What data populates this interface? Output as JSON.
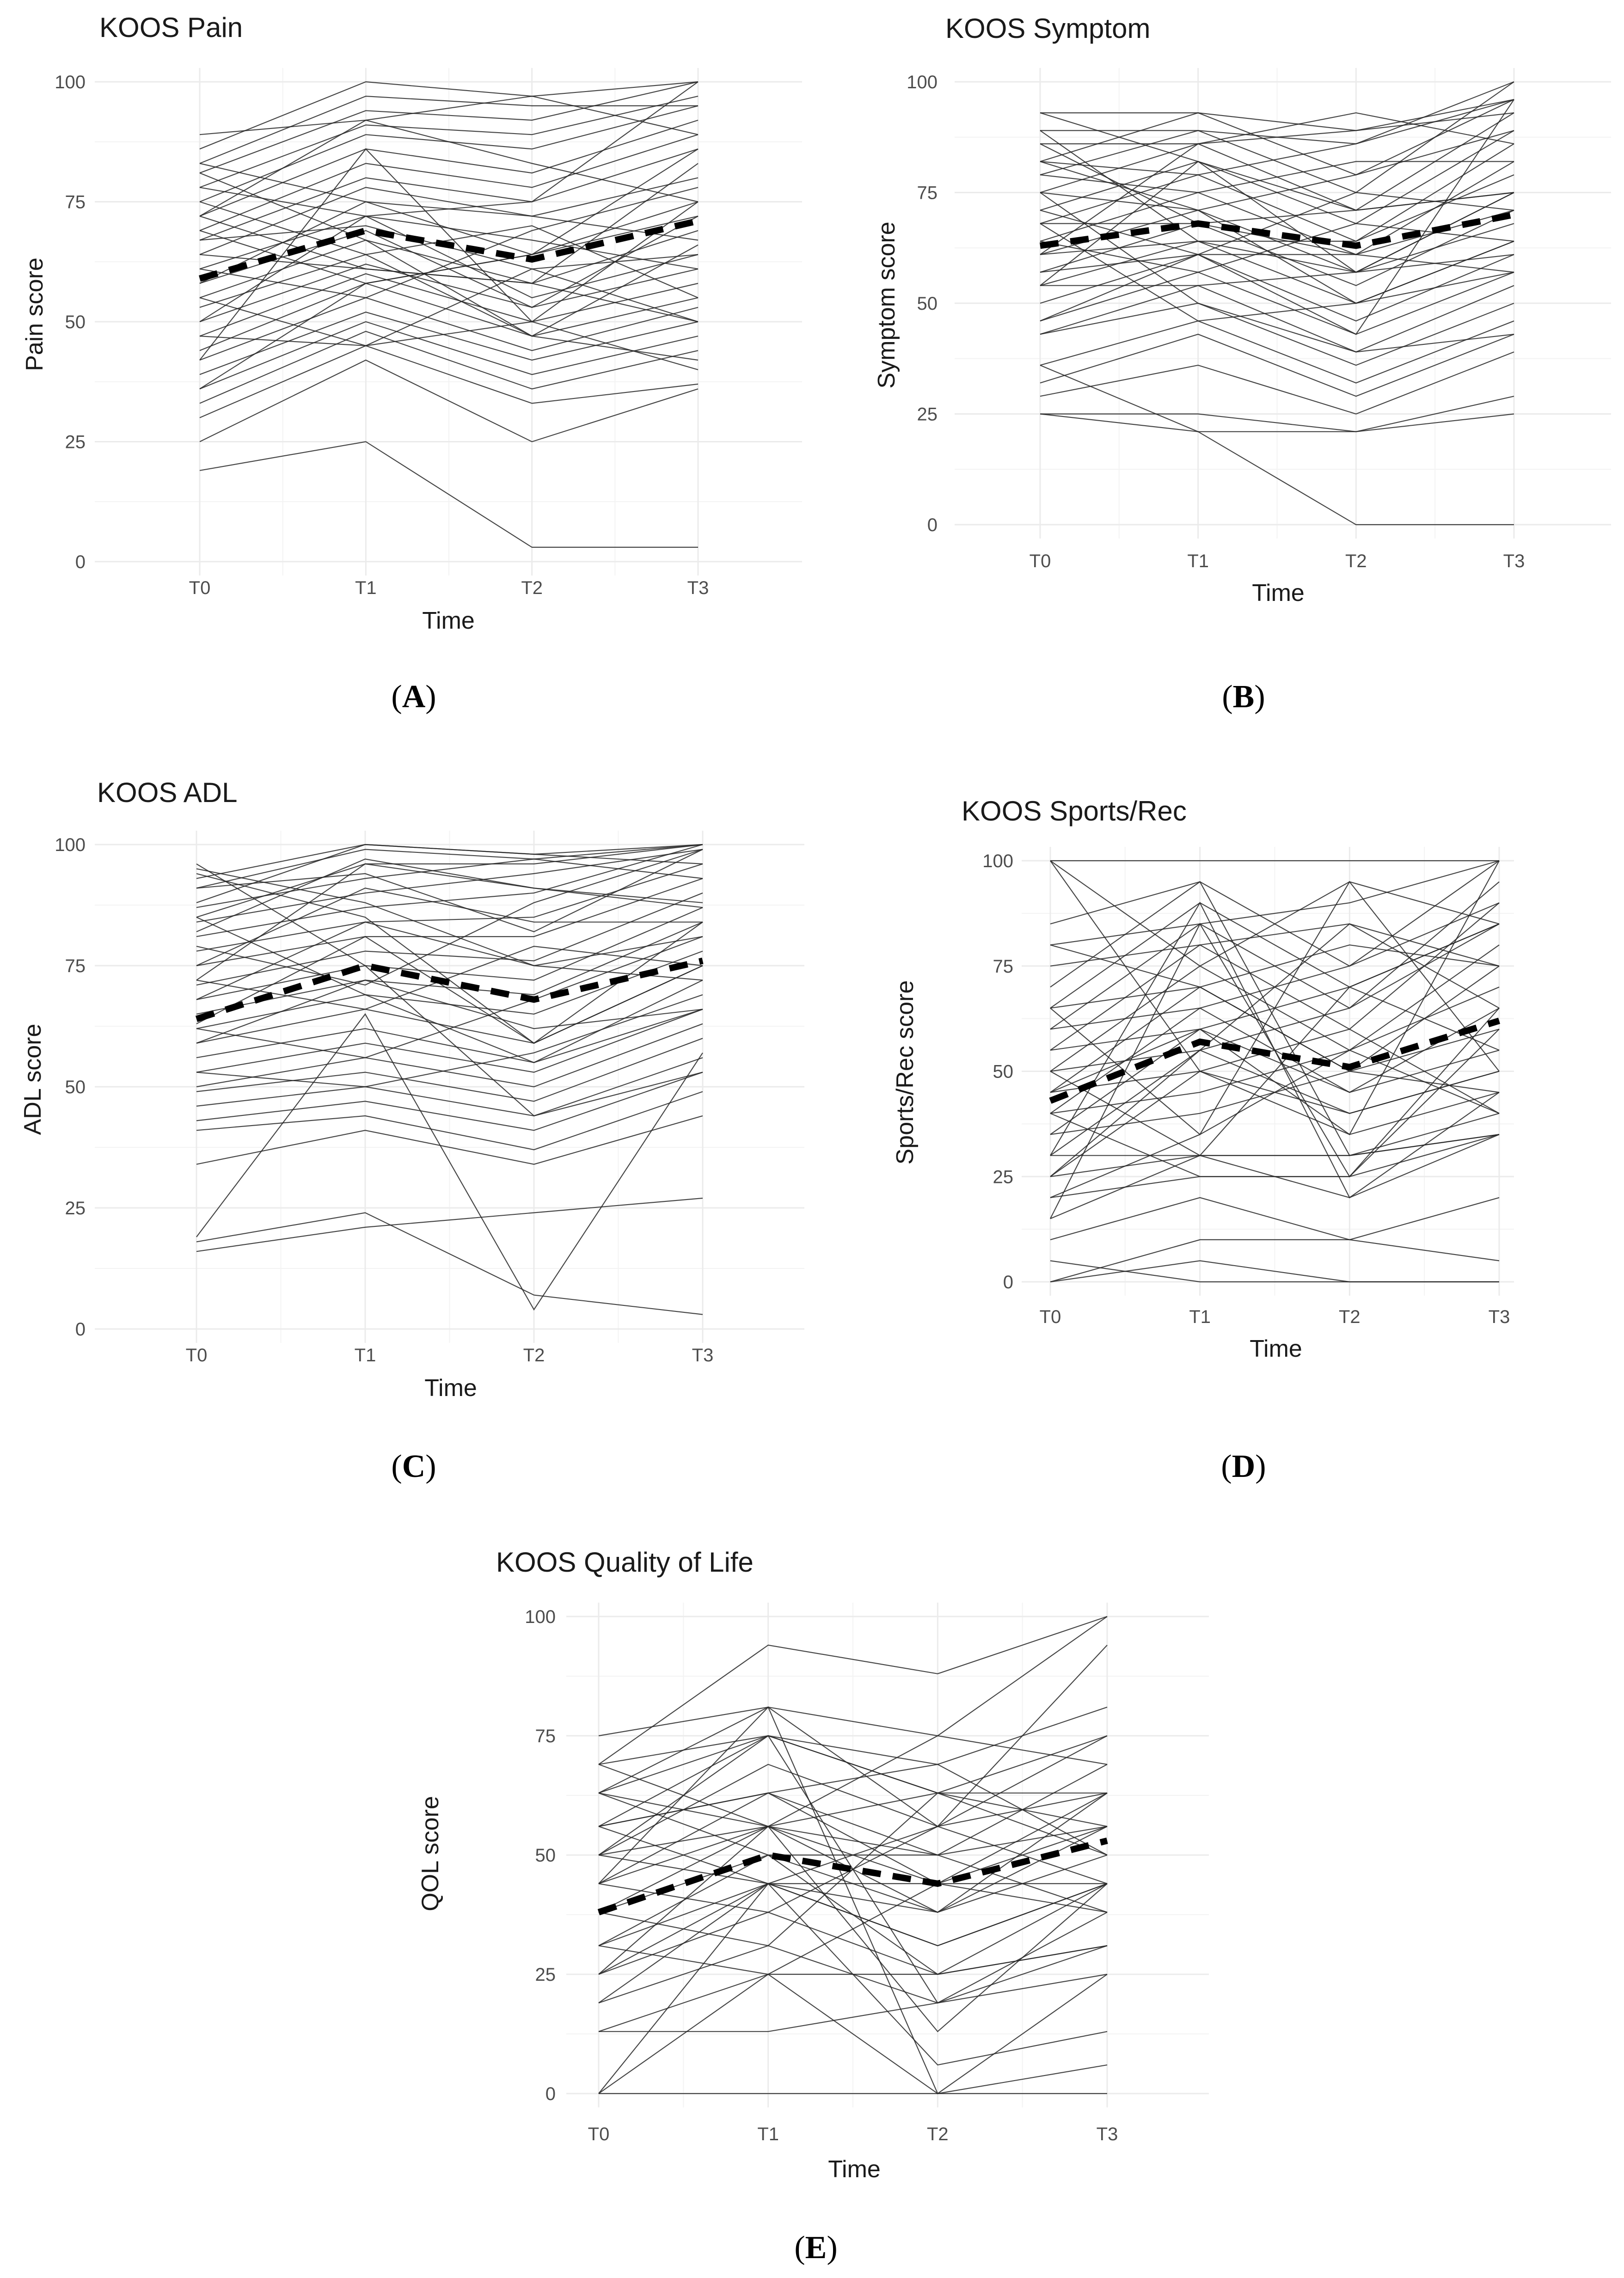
{
  "figure": {
    "panel_labels": [
      "A",
      "B",
      "C",
      "D",
      "E"
    ]
  },
  "chart_data": [
    {
      "type": "line",
      "title": "KOOS Pain",
      "xlabel": "Time",
      "ylabel": "Pain score",
      "categories": [
        "T0",
        "T1",
        "T2",
        "T3"
      ],
      "yticks": [
        "0",
        "25",
        "50",
        "75",
        "100"
      ],
      "ylim": [
        0,
        100
      ],
      "grid": true,
      "mean_series": {
        "style": "dashed-bold",
        "values": [
          59,
          69,
          63,
          71
        ]
      },
      "subject_series": [
        [
          19,
          25,
          3,
          3
        ],
        [
          25,
          42,
          25,
          36
        ],
        [
          30,
          45,
          33,
          37
        ],
        [
          33,
          48,
          36,
          44
        ],
        [
          36,
          50,
          39,
          47
        ],
        [
          39,
          52,
          42,
          50
        ],
        [
          42,
          55,
          44,
          53
        ],
        [
          44,
          58,
          47,
          55
        ],
        [
          47,
          60,
          50,
          58
        ],
        [
          47,
          45,
          50,
          40
        ],
        [
          50,
          62,
          53,
          61
        ],
        [
          50,
          72,
          55,
          64
        ],
        [
          53,
          64,
          47,
          66
        ],
        [
          55,
          67,
          58,
          69
        ],
        [
          55,
          45,
          61,
          50
        ],
        [
          58,
          69,
          53,
          72
        ],
        [
          58,
          75,
          64,
          75
        ],
        [
          61,
          72,
          67,
          61
        ],
        [
          61,
          55,
          69,
          78
        ],
        [
          64,
          78,
          72,
          80
        ],
        [
          64,
          61,
          58,
          83
        ],
        [
          67,
          80,
          75,
          86
        ],
        [
          67,
          70,
          61,
          64
        ],
        [
          69,
          83,
          78,
          89
        ],
        [
          69,
          58,
          64,
          72
        ],
        [
          72,
          86,
          81,
          92
        ],
        [
          72,
          92,
          83,
          75
        ],
        [
          75,
          89,
          86,
          95
        ],
        [
          75,
          64,
          70,
          55
        ],
        [
          78,
          91,
          89,
          97
        ],
        [
          78,
          72,
          75,
          100
        ],
        [
          81,
          94,
          92,
          100
        ],
        [
          83,
          97,
          95,
          95
        ],
        [
          86,
          100,
          97,
          100
        ],
        [
          89,
          92,
          97,
          89
        ],
        [
          81,
          67,
          47,
          42
        ],
        [
          83,
          75,
          72,
          67
        ],
        [
          72,
          61,
          58,
          50
        ],
        [
          36,
          58,
          64,
          86
        ],
        [
          42,
          86,
          50,
          75
        ]
      ]
    },
    {
      "type": "line",
      "title": "KOOS Symptom",
      "xlabel": "Time",
      "ylabel": "Symptom score",
      "categories": [
        "T0",
        "T1",
        "T2",
        "T3"
      ],
      "yticks": [
        "0",
        "25",
        "50",
        "75",
        "100"
      ],
      "ylim": [
        0,
        100
      ],
      "grid": true,
      "mean_series": {
        "style": "dashed-bold",
        "values": [
          63,
          68,
          63,
          70
        ]
      },
      "subject_series": [
        [
          25,
          25,
          21,
          25
        ],
        [
          25,
          21,
          21,
          29
        ],
        [
          29,
          36,
          25,
          39
        ],
        [
          32,
          43,
          29,
          43
        ],
        [
          36,
          46,
          32,
          46
        ],
        [
          36,
          21,
          0,
          0
        ],
        [
          43,
          50,
          36,
          50
        ],
        [
          43,
          54,
          39,
          54
        ],
        [
          46,
          57,
          43,
          57
        ],
        [
          50,
          61,
          46,
          61
        ],
        [
          54,
          64,
          50,
          64
        ],
        [
          54,
          54,
          57,
          68
        ],
        [
          57,
          68,
          54,
          71
        ],
        [
          57,
          61,
          61,
          57
        ],
        [
          61,
          71,
          57,
          75
        ],
        [
          61,
          64,
          64,
          79
        ],
        [
          64,
          75,
          61,
          82
        ],
        [
          64,
          57,
          68,
          64
        ],
        [
          68,
          79,
          64,
          86
        ],
        [
          68,
          68,
          71,
          75
        ],
        [
          71,
          82,
          68,
          89
        ],
        [
          71,
          61,
          75,
          71
        ],
        [
          75,
          86,
          71,
          93
        ],
        [
          75,
          71,
          79,
          96
        ],
        [
          79,
          89,
          75,
          100
        ],
        [
          79,
          75,
          82,
          82
        ],
        [
          82,
          93,
          79,
          89
        ],
        [
          82,
          79,
          86,
          96
        ],
        [
          86,
          86,
          89,
          93
        ],
        [
          86,
          68,
          61,
          71
        ],
        [
          89,
          89,
          86,
          100
        ],
        [
          93,
          93,
          89,
          96
        ],
        [
          93,
          82,
          71,
          75
        ],
        [
          89,
          64,
          57,
          61
        ],
        [
          75,
          50,
          39,
          43
        ],
        [
          68,
          46,
          50,
          64
        ],
        [
          61,
          86,
          93,
          86
        ],
        [
          54,
          82,
          57,
          75
        ],
        [
          46,
          61,
          43,
          96
        ],
        [
          82,
          71,
          50,
          57
        ]
      ]
    },
    {
      "type": "line",
      "title": "KOOS ADL",
      "xlabel": "Time",
      "ylabel": "ADL score",
      "categories": [
        "T0",
        "T1",
        "T2",
        "T3"
      ],
      "yticks": [
        "0",
        "25",
        "50",
        "75",
        "100"
      ],
      "ylim": [
        0,
        100
      ],
      "grid": true,
      "mean_series": {
        "style": "dashed-bold",
        "values": [
          64,
          75,
          68,
          76
        ]
      },
      "subject_series": [
        [
          16,
          21,
          24,
          27
        ],
        [
          18,
          24,
          7,
          3
        ],
        [
          19,
          65,
          4,
          57
        ],
        [
          34,
          41,
          34,
          44
        ],
        [
          41,
          44,
          37,
          49
        ],
        [
          43,
          47,
          41,
          53
        ],
        [
          46,
          50,
          44,
          56
        ],
        [
          49,
          53,
          47,
          60
        ],
        [
          50,
          56,
          50,
          63
        ],
        [
          53,
          59,
          53,
          66
        ],
        [
          53,
          50,
          57,
          69
        ],
        [
          56,
          62,
          55,
          72
        ],
        [
          59,
          66,
          59,
          75
        ],
        [
          59,
          72,
          62,
          66
        ],
        [
          62,
          69,
          65,
          78
        ],
        [
          62,
          56,
          68,
          81
        ],
        [
          65,
          72,
          69,
          84
        ],
        [
          68,
          75,
          72,
          87
        ],
        [
          68,
          84,
          75,
          72
        ],
        [
          71,
          78,
          76,
          90
        ],
        [
          72,
          66,
          79,
          75
        ],
        [
          75,
          81,
          81,
          93
        ],
        [
          75,
          91,
          84,
          84
        ],
        [
          78,
          84,
          85,
          96
        ],
        [
          79,
          71,
          88,
          99
        ],
        [
          81,
          87,
          90,
          100
        ],
        [
          82,
          97,
          91,
          87
        ],
        [
          84,
          90,
          94,
          99
        ],
        [
          85,
          96,
          96,
          100
        ],
        [
          87,
          93,
          97,
          93
        ],
        [
          88,
          100,
          98,
          100
        ],
        [
          91,
          99,
          97,
          100
        ],
        [
          91,
          94,
          82,
          99
        ],
        [
          93,
          100,
          98,
          96
        ],
        [
          94,
          85,
          59,
          75
        ],
        [
          96,
          75,
          44,
          53
        ],
        [
          95,
          88,
          75,
          81
        ],
        [
          85,
          69,
          55,
          66
        ],
        [
          72,
          96,
          91,
          88
        ],
        [
          63,
          81,
          59,
          84
        ]
      ]
    },
    {
      "type": "line",
      "title": "KOOS Sports/Rec",
      "xlabel": "Time",
      "ylabel": "Sports/Rec score",
      "categories": [
        "T0",
        "T1",
        "T2",
        "T3"
      ],
      "yticks": [
        "0",
        "25",
        "50",
        "75",
        "100"
      ],
      "ylim": [
        0,
        100
      ],
      "grid": true,
      "mean_series": {
        "style": "dashed-bold",
        "values": [
          43,
          57,
          51,
          62
        ]
      },
      "subject_series": [
        [
          0,
          5,
          0,
          0
        ],
        [
          0,
          10,
          10,
          5
        ],
        [
          5,
          0,
          0,
          0
        ],
        [
          10,
          20,
          10,
          20
        ],
        [
          15,
          30,
          20,
          35
        ],
        [
          20,
          25,
          25,
          35
        ],
        [
          25,
          30,
          30,
          40
        ],
        [
          25,
          50,
          35,
          45
        ],
        [
          30,
          30,
          30,
          35
        ],
        [
          30,
          55,
          40,
          50
        ],
        [
          35,
          60,
          45,
          55
        ],
        [
          35,
          40,
          50,
          60
        ],
        [
          40,
          65,
          45,
          65
        ],
        [
          40,
          45,
          55,
          70
        ],
        [
          45,
          70,
          50,
          75
        ],
        [
          45,
          50,
          60,
          40
        ],
        [
          50,
          75,
          55,
          80
        ],
        [
          50,
          55,
          65,
          85
        ],
        [
          55,
          80,
          60,
          90
        ],
        [
          55,
          60,
          70,
          55
        ],
        [
          60,
          85,
          65,
          95
        ],
        [
          60,
          65,
          75,
          100
        ],
        [
          65,
          90,
          70,
          85
        ],
        [
          65,
          70,
          80,
          75
        ],
        [
          70,
          95,
          75,
          90
        ],
        [
          75,
          80,
          85,
          65
        ],
        [
          80,
          85,
          90,
          100
        ],
        [
          80,
          70,
          50,
          45
        ],
        [
          85,
          95,
          30,
          35
        ],
        [
          100,
          100,
          100,
          100
        ],
        [
          100,
          75,
          95,
          85
        ],
        [
          100,
          50,
          40,
          50
        ],
        [
          30,
          90,
          20,
          45
        ],
        [
          20,
          35,
          95,
          50
        ],
        [
          50,
          30,
          70,
          85
        ],
        [
          15,
          85,
          25,
          60
        ],
        [
          45,
          60,
          35,
          100
        ],
        [
          65,
          35,
          55,
          40
        ],
        [
          25,
          55,
          85,
          75
        ],
        [
          40,
          25,
          25,
          65
        ]
      ]
    },
    {
      "type": "line",
      "title": "KOOS Quality of Life",
      "xlabel": "Time",
      "ylabel": "QOL score",
      "categories": [
        "T0",
        "T1",
        "T2",
        "T3"
      ],
      "yticks": [
        "0",
        "25",
        "50",
        "75",
        "100"
      ],
      "ylim": [
        0,
        100
      ],
      "grid": true,
      "mean_series": {
        "style": "dashed-bold",
        "values": [
          38,
          50,
          44,
          53
        ]
      },
      "subject_series": [
        [
          0,
          0,
          0,
          0
        ],
        [
          0,
          25,
          0,
          6
        ],
        [
          0,
          44,
          6,
          13
        ],
        [
          13,
          13,
          19,
          25
        ],
        [
          13,
          25,
          25,
          31
        ],
        [
          19,
          31,
          19,
          38
        ],
        [
          25,
          44,
          31,
          44
        ],
        [
          25,
          38,
          25,
          31
        ],
        [
          31,
          44,
          38,
          50
        ],
        [
          31,
          25,
          44,
          44
        ],
        [
          38,
          50,
          38,
          56
        ],
        [
          38,
          56,
          50,
          38
        ],
        [
          44,
          56,
          44,
          63
        ],
        [
          44,
          38,
          56,
          44
        ],
        [
          44,
          63,
          50,
          69
        ],
        [
          50,
          56,
          63,
          50
        ],
        [
          50,
          69,
          56,
          75
        ],
        [
          56,
          63,
          44,
          56
        ],
        [
          56,
          75,
          63,
          63
        ],
        [
          56,
          44,
          31,
          44
        ],
        [
          63,
          75,
          69,
          81
        ],
        [
          63,
          56,
          75,
          69
        ],
        [
          63,
          81,
          56,
          94
        ],
        [
          69,
          75,
          63,
          75
        ],
        [
          69,
          94,
          88,
          100
        ],
        [
          75,
          81,
          75,
          100
        ],
        [
          50,
          75,
          19,
          31
        ],
        [
          44,
          81,
          0,
          25
        ],
        [
          38,
          31,
          63,
          56
        ],
        [
          25,
          56,
          13,
          44
        ],
        [
          19,
          44,
          56,
          63
        ],
        [
          63,
          50,
          25,
          44
        ],
        [
          56,
          63,
          69,
          50
        ],
        [
          50,
          44,
          44,
          38
        ],
        [
          31,
          50,
          50,
          56
        ],
        [
          69,
          56,
          38,
          63
        ]
      ]
    }
  ]
}
